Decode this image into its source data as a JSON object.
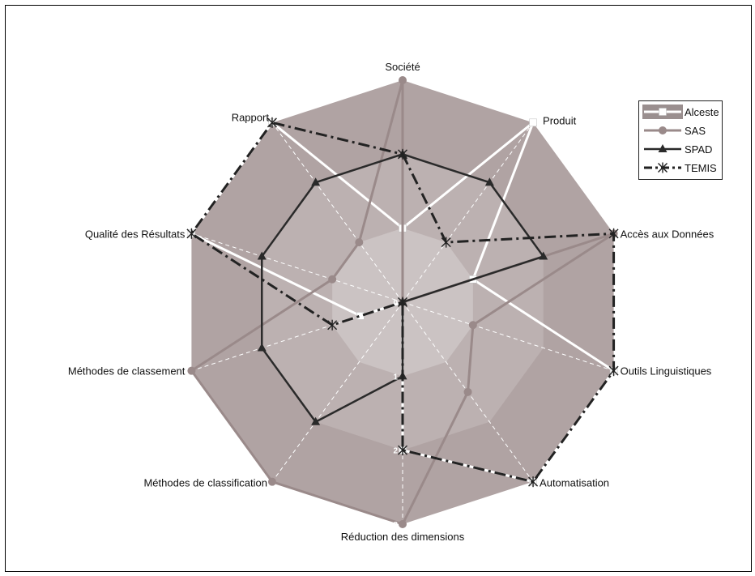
{
  "chart_data": {
    "type": "radar",
    "axes": [
      "Société",
      "Produit",
      "Accès aux Données",
      "Outils Linguistiques",
      "Automatisation",
      "Réduction des dimensions",
      "Méthodes de classification",
      "Méthodes de classement",
      "Qualité des Résultats",
      "Rapport"
    ],
    "scale": {
      "min": 0,
      "max": 3,
      "ticks": [
        "0",
        "1",
        "2",
        "3"
      ]
    },
    "series": [
      {
        "name": "Alceste",
        "color": "#ffffff",
        "marker": "square",
        "values": [
          1,
          3,
          1,
          3,
          3,
          2,
          0,
          0.6,
          3,
          3
        ]
      },
      {
        "name": "SAS",
        "color": "#9a8a8a",
        "marker": "circle",
        "values": [
          3,
          0,
          3,
          1,
          1.5,
          3,
          3,
          3,
          1,
          1
        ]
      },
      {
        "name": "SPAD",
        "color": "#2a2a2a",
        "marker": "triangle",
        "values": [
          2,
          2,
          2,
          0,
          0,
          1,
          2,
          2,
          2,
          2
        ]
      },
      {
        "name": "TEMIS",
        "color": "#222222",
        "marker": "asterisk",
        "dash": "dash-dot",
        "values": [
          2,
          1,
          3,
          3,
          3,
          2,
          0,
          1,
          3,
          3
        ]
      }
    ],
    "legend": "top-right",
    "grid": true
  }
}
